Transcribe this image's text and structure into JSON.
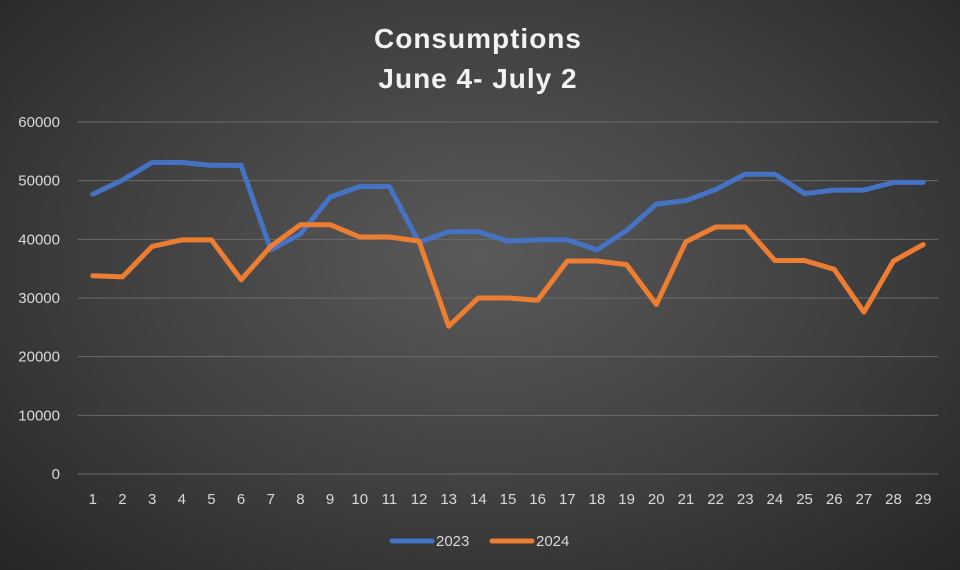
{
  "chart_data": {
    "type": "line",
    "title": "Consumptions",
    "subtitle": "June 4- July 2",
    "xlabel": "",
    "ylabel": "",
    "ylim": [
      0,
      60000
    ],
    "yticks": [
      0,
      10000,
      20000,
      30000,
      40000,
      50000,
      60000
    ],
    "categories": [
      "1",
      "2",
      "3",
      "4",
      "5",
      "6",
      "7",
      "8",
      "9",
      "10",
      "11",
      "12",
      "13",
      "14",
      "15",
      "16",
      "17",
      "18",
      "19",
      "20",
      "21",
      "22",
      "23",
      "24",
      "25",
      "26",
      "27",
      "28",
      "29"
    ],
    "grid": true,
    "legend_position": "bottom",
    "series": [
      {
        "name": "2023",
        "color": "#4472c4",
        "values": [
          47700,
          50100,
          53100,
          53100,
          52600,
          52600,
          38200,
          40900,
          47200,
          49000,
          49000,
          39500,
          41300,
          41300,
          39700,
          39900,
          39900,
          38200,
          41500,
          46000,
          46600,
          48500,
          51100,
          51100,
          47800,
          48400,
          48400,
          49700,
          49700
        ]
      },
      {
        "name": "2024",
        "color": "#ed7d31",
        "values": [
          33800,
          33600,
          38800,
          39900,
          39900,
          33100,
          38800,
          42500,
          42500,
          40400,
          40400,
          39700,
          25200,
          30000,
          30000,
          29600,
          36300,
          36300,
          35700,
          28900,
          39600,
          42100,
          42100,
          36400,
          36400,
          34900,
          27600,
          36300,
          39100
        ]
      }
    ]
  }
}
